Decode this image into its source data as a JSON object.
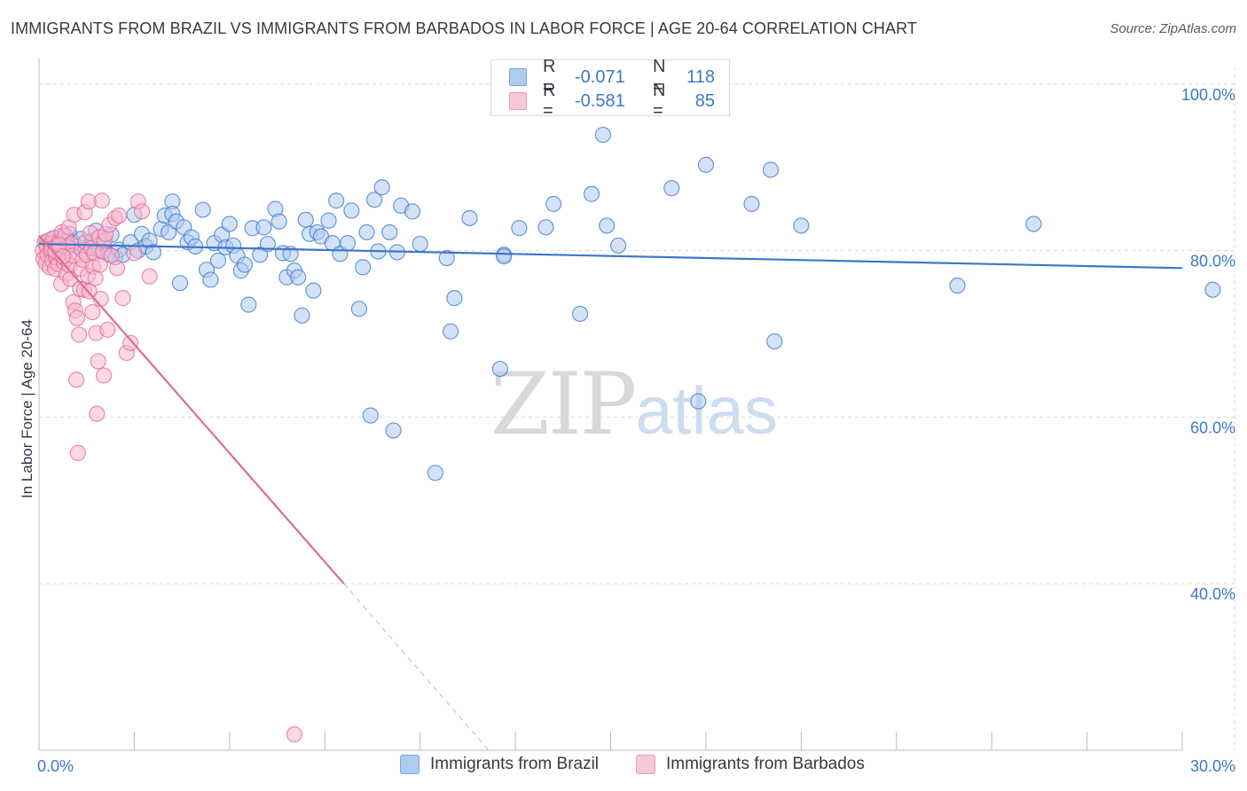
{
  "title": "IMMIGRANTS FROM BRAZIL VS IMMIGRANTS FROM BARBADOS IN LABOR FORCE | AGE 20-64 CORRELATION CHART",
  "source": "Source: ZipAtlas.com",
  "watermark": {
    "zip": "ZIP",
    "atlas": "atlas"
  },
  "legend": {
    "rows": [
      {
        "r_label": "R =",
        "r_value": "-0.071",
        "n_label": "N =",
        "n_value": "118",
        "color": "#aecbf0"
      },
      {
        "r_label": "R =",
        "r_value": "-0.581",
        "n_label": "N =",
        "n_value": "85",
        "color": "#f7b8cd"
      }
    ]
  },
  "bottom_legend": {
    "brazil": "Immigrants from Brazil",
    "barbados": "Immigrants from Barbados"
  },
  "chart_data": {
    "type": "scatter",
    "xlabel": "",
    "ylabel": "In Labor Force | Age 20-64",
    "xlim": [
      0,
      30
    ],
    "ylim": [
      20,
      102
    ],
    "x_tick_labels": [
      {
        "value": 0,
        "label": "0.0%"
      },
      {
        "value": 30,
        "label": "30.0%"
      }
    ],
    "y_tick_labels": [
      {
        "value": 100,
        "label": "100.0%"
      },
      {
        "value": 80,
        "label": "80.0%"
      },
      {
        "value": 60,
        "label": "60.0%"
      },
      {
        "value": 40,
        "label": "40.0%"
      }
    ],
    "series": [
      {
        "name": "Immigrants from Brazil",
        "color": "#3b78c9",
        "fill": "#aecbf0",
        "trend": {
          "x": [
            0,
            30
          ],
          "y": [
            80.8,
            77.9
          ],
          "dashed_from_x": null
        },
        "points": [
          [
            0.2,
            81
          ],
          [
            0.3,
            80
          ],
          [
            0.4,
            81.5
          ],
          [
            0.5,
            80.2
          ],
          [
            0.6,
            81.8
          ],
          [
            0.7,
            80.6
          ],
          [
            0.8,
            82
          ],
          [
            0.9,
            81
          ],
          [
            1.0,
            80.5
          ],
          [
            1.1,
            81.4
          ],
          [
            1.2,
            79.8
          ],
          [
            1.3,
            80.4
          ],
          [
            1.4,
            81.2
          ],
          [
            1.5,
            82.4
          ],
          [
            1.6,
            80
          ],
          [
            1.7,
            80.8
          ],
          [
            1.8,
            79.6
          ],
          [
            1.9,
            81.9
          ],
          [
            2.0,
            79.2
          ],
          [
            2.1,
            80.1
          ],
          [
            2.2,
            79.5
          ],
          [
            2.4,
            81
          ],
          [
            2.5,
            84.3
          ],
          [
            2.6,
            80
          ],
          [
            2.7,
            82
          ],
          [
            2.8,
            80.5
          ],
          [
            2.9,
            81.2
          ],
          [
            3.0,
            79.8
          ],
          [
            3.2,
            82.6
          ],
          [
            3.3,
            84.2
          ],
          [
            3.4,
            82.2
          ],
          [
            3.5,
            85.9
          ],
          [
            3.5,
            84.4
          ],
          [
            3.6,
            83.5
          ],
          [
            3.7,
            76.1
          ],
          [
            3.8,
            82.8
          ],
          [
            3.9,
            81
          ],
          [
            4.0,
            81.6
          ],
          [
            4.1,
            80.5
          ],
          [
            4.3,
            84.9
          ],
          [
            4.4,
            77.7
          ],
          [
            4.5,
            76.5
          ],
          [
            4.6,
            80.9
          ],
          [
            4.7,
            78.8
          ],
          [
            4.8,
            81.9
          ],
          [
            4.9,
            80.4
          ],
          [
            5.0,
            83.2
          ],
          [
            5.1,
            80.6
          ],
          [
            5.2,
            79.4
          ],
          [
            5.3,
            77.6
          ],
          [
            5.4,
            78.3
          ],
          [
            5.5,
            73.5
          ],
          [
            5.6,
            82.7
          ],
          [
            5.8,
            79.5
          ],
          [
            5.9,
            82.8
          ],
          [
            6.0,
            80.8
          ],
          [
            6.2,
            85
          ],
          [
            6.3,
            83.5
          ],
          [
            6.4,
            79.7
          ],
          [
            6.5,
            76.8
          ],
          [
            6.6,
            79.6
          ],
          [
            6.7,
            77.6
          ],
          [
            6.8,
            76.8
          ],
          [
            6.9,
            72.2
          ],
          [
            7.0,
            83.7
          ],
          [
            7.1,
            82
          ],
          [
            7.2,
            75.2
          ],
          [
            7.3,
            82.2
          ],
          [
            7.4,
            81.7
          ],
          [
            7.6,
            83.6
          ],
          [
            7.7,
            80.9
          ],
          [
            7.8,
            86
          ],
          [
            7.9,
            79.6
          ],
          [
            8.1,
            80.9
          ],
          [
            8.2,
            84.8
          ],
          [
            8.4,
            73
          ],
          [
            8.5,
            78
          ],
          [
            8.6,
            82.2
          ],
          [
            8.7,
            60.2
          ],
          [
            8.8,
            86.1
          ],
          [
            8.9,
            79.9
          ],
          [
            9.0,
            87.6
          ],
          [
            9.2,
            82.2
          ],
          [
            9.3,
            58.4
          ],
          [
            9.4,
            79.8
          ],
          [
            9.5,
            85.4
          ],
          [
            9.8,
            84.7
          ],
          [
            10.0,
            80.8
          ],
          [
            10.4,
            53.3
          ],
          [
            10.7,
            79.1
          ],
          [
            10.8,
            70.3
          ],
          [
            10.9,
            74.3
          ],
          [
            11.3,
            83.9
          ],
          [
            12.1,
            65.8
          ],
          [
            12.2,
            79.5
          ],
          [
            12.2,
            79.3
          ],
          [
            12.6,
            82.7
          ],
          [
            13.3,
            82.8
          ],
          [
            13.5,
            85.6
          ],
          [
            14.2,
            72.4
          ],
          [
            14.5,
            86.8
          ],
          [
            14.8,
            93.9
          ],
          [
            14.9,
            83
          ],
          [
            15.2,
            80.6
          ],
          [
            16.6,
            87.5
          ],
          [
            17.3,
            61.9
          ],
          [
            17.5,
            90.3
          ],
          [
            18.7,
            85.6
          ],
          [
            19.2,
            89.7
          ],
          [
            19.3,
            69.1
          ],
          [
            20.0,
            83
          ],
          [
            24.1,
            75.8
          ],
          [
            26.1,
            83.2
          ],
          [
            30.8,
            75.3
          ]
        ]
      },
      {
        "name": "Immigrants from Barbados",
        "color": "#e06a97",
        "fill": "#f7b8cd",
        "trend": {
          "x": [
            0,
            8.0,
            11.8
          ],
          "y": [
            81.8,
            40.0,
            20.0
          ],
          "dashed_from_x": 8.0
        },
        "points": [
          [
            0.1,
            80
          ],
          [
            0.12,
            79
          ],
          [
            0.15,
            81
          ],
          [
            0.18,
            78.5
          ],
          [
            0.2,
            80.5
          ],
          [
            0.22,
            79.5
          ],
          [
            0.25,
            81.2
          ],
          [
            0.28,
            78
          ],
          [
            0.3,
            80.8
          ],
          [
            0.32,
            79.8
          ],
          [
            0.35,
            78.8
          ],
          [
            0.38,
            81.5
          ],
          [
            0.4,
            80.2
          ],
          [
            0.42,
            77.8
          ],
          [
            0.45,
            79.2
          ],
          [
            0.48,
            80.6
          ],
          [
            0.5,
            78.4
          ],
          [
            0.52,
            81
          ],
          [
            0.55,
            79.6
          ],
          [
            0.58,
            76
          ],
          [
            0.6,
            82.2
          ],
          [
            0.62,
            80
          ],
          [
            0.65,
            78.6
          ],
          [
            0.68,
            81.8
          ],
          [
            0.7,
            79
          ],
          [
            0.72,
            77.2
          ],
          [
            0.75,
            80.4
          ],
          [
            0.78,
            82.8
          ],
          [
            0.8,
            78.2
          ],
          [
            0.82,
            76.6
          ],
          [
            0.85,
            80.8
          ],
          [
            0.88,
            79.4
          ],
          [
            0.9,
            73.8
          ],
          [
            0.92,
            84.3
          ],
          [
            0.95,
            72.8
          ],
          [
            0.98,
            64.5
          ],
          [
            1.0,
            71.9
          ],
          [
            1.02,
            55.7
          ],
          [
            1.05,
            69.9
          ],
          [
            1.08,
            75.4
          ],
          [
            1.1,
            77.8
          ],
          [
            1.12,
            80.1
          ],
          [
            1.15,
            78.9
          ],
          [
            1.18,
            75.3
          ],
          [
            1.2,
            84.6
          ],
          [
            1.22,
            81
          ],
          [
            1.25,
            79.5
          ],
          [
            1.28,
            77
          ],
          [
            1.3,
            85.9
          ],
          [
            1.32,
            75.1
          ],
          [
            1.35,
            82.1
          ],
          [
            1.38,
            80.3
          ],
          [
            1.4,
            72.6
          ],
          [
            1.42,
            78.1
          ],
          [
            1.45,
            79.7
          ],
          [
            1.48,
            76.7
          ],
          [
            1.5,
            70.1
          ],
          [
            1.52,
            60.4
          ],
          [
            1.55,
            66.7
          ],
          [
            1.58,
            81.6
          ],
          [
            1.6,
            78.3
          ],
          [
            1.62,
            74.2
          ],
          [
            1.65,
            86
          ],
          [
            1.68,
            79.9
          ],
          [
            1.7,
            65
          ],
          [
            1.72,
            81.2
          ],
          [
            1.75,
            82
          ],
          [
            1.8,
            70.5
          ],
          [
            1.85,
            83.1
          ],
          [
            1.9,
            79.4
          ],
          [
            2.0,
            83.9
          ],
          [
            2.05,
            77.9
          ],
          [
            2.1,
            84.2
          ],
          [
            2.2,
            74.3
          ],
          [
            2.3,
            67.7
          ],
          [
            2.4,
            68.9
          ],
          [
            2.5,
            79.7
          ],
          [
            2.6,
            85.9
          ],
          [
            2.7,
            84.7
          ],
          [
            2.9,
            76.9
          ],
          [
            0.33,
            80.2
          ],
          [
            0.43,
            79.9
          ],
          [
            0.53,
            80.7
          ],
          [
            0.63,
            79.3
          ],
          [
            6.7,
            21.9
          ]
        ]
      }
    ]
  }
}
